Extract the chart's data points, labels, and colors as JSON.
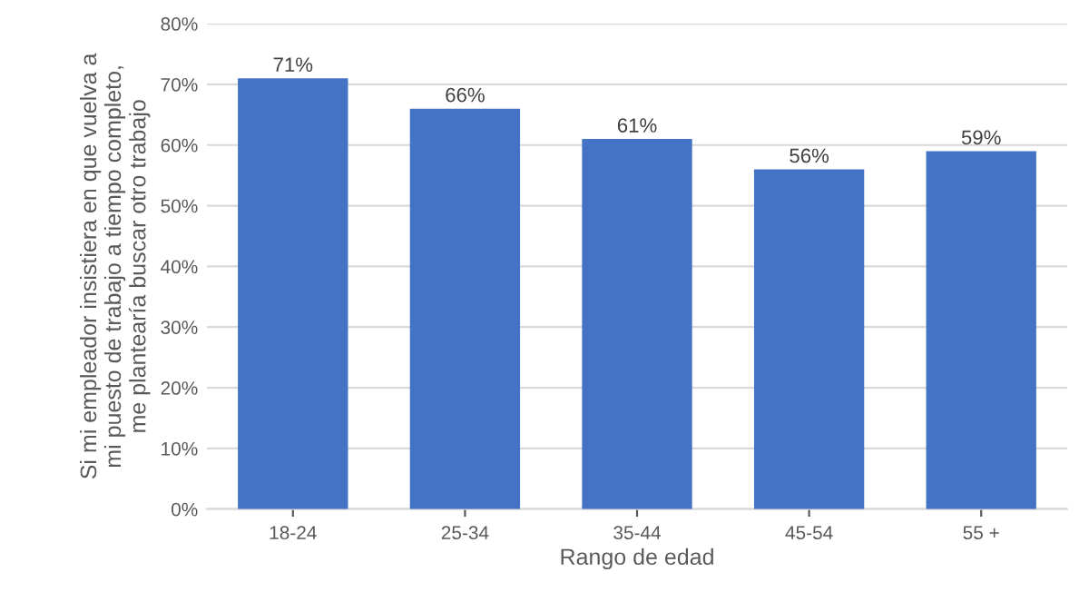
{
  "chart_data": {
    "type": "bar",
    "categories": [
      "18-24",
      "25-34",
      "35-44",
      "45-54",
      "55 +"
    ],
    "values": [
      71,
      66,
      61,
      56,
      59
    ],
    "value_labels": [
      "71%",
      "66%",
      "61%",
      "56%",
      "59%"
    ],
    "color": "#4472c4",
    "xlabel": "Rango de edad",
    "ylabel": "Si mi empleador insistiera en que vuelva a\nmi puesto de trabajo a tiempo completo,\nme plantearía buscar otro trabajo",
    "ylim": [
      0,
      80
    ],
    "yticks": [
      {
        "value": 0,
        "label": "0%"
      },
      {
        "value": 10,
        "label": "10%"
      },
      {
        "value": 20,
        "label": "20%"
      },
      {
        "value": 30,
        "label": "30%"
      },
      {
        "value": 40,
        "label": "40%"
      },
      {
        "value": 50,
        "label": "50%"
      },
      {
        "value": 60,
        "label": "60%"
      },
      {
        "value": 70,
        "label": "70%"
      },
      {
        "value": 80,
        "label": "80%"
      }
    ],
    "grid": "y"
  }
}
